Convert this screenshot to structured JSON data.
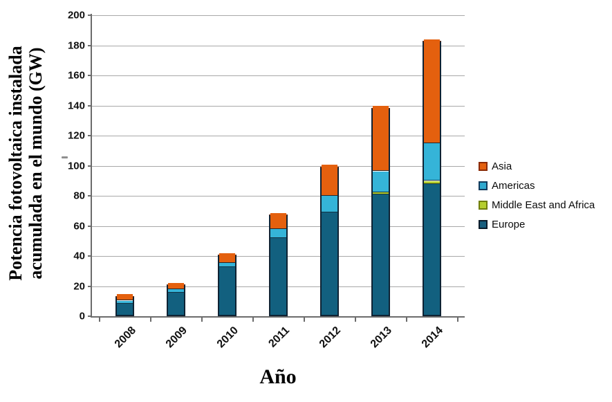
{
  "figure": {
    "background": "#ffffff",
    "axis_color": "#6b6b6b",
    "gridline_color": "#a8a8a8",
    "bar_outline_color": "#0e2233",
    "asia_top_outline_color": "#7e2704"
  },
  "chart_data": {
    "type": "bar",
    "stacked": true,
    "title": "",
    "xlabel": "Año",
    "ylabel": "Potencia fotovoltaica instalada acumulada en el mundo (GW)",
    "ylabel_lines": [
      "Potencia fotovoltaica instalada",
      "acumulada en el mundo (GW)"
    ],
    "categories": [
      "2008",
      "2009",
      "2010",
      "2011",
      "2012",
      "2013",
      "2014"
    ],
    "series": [
      {
        "name": "Europe",
        "color": "#12607f",
        "values": [
          7.5,
          14.5,
          31.5,
          51,
          68,
          80,
          87
        ]
      },
      {
        "name": "Middle East and Africa",
        "color": "#b5ce2d",
        "values": [
          0,
          0,
          0,
          0,
          0,
          1.5,
          2
        ]
      },
      {
        "name": "Americas",
        "color": "#35b4d8",
        "values": [
          2,
          2.5,
          3,
          6,
          11,
          14,
          25
        ]
      },
      {
        "name": "Asia",
        "color": "#e4600e",
        "values": [
          4,
          4,
          6.5,
          10.5,
          20.5,
          43,
          69
        ]
      }
    ],
    "totals": [
      13.5,
      21,
      41,
      67.5,
      99.5,
      138.5,
      183
    ],
    "ylim": [
      0,
      200
    ],
    "ytick_step": 20,
    "yticks": [
      "0",
      "20",
      "40",
      "60",
      "80",
      "100",
      "120",
      "140",
      "160",
      "180",
      "200"
    ],
    "grid": true,
    "legend_position": "right",
    "legend": [
      {
        "label": "Asia",
        "color": "#e4600e",
        "border": "#8a2a04"
      },
      {
        "label": "Americas",
        "color": "#2fa9cf",
        "border": "#123a5c"
      },
      {
        "label": "Middle East and Africa",
        "color": "#b5ce2d",
        "border": "#6f7d0a"
      },
      {
        "label": "Europe",
        "color": "#175e7e",
        "border": "#0b1b2a"
      }
    ]
  }
}
